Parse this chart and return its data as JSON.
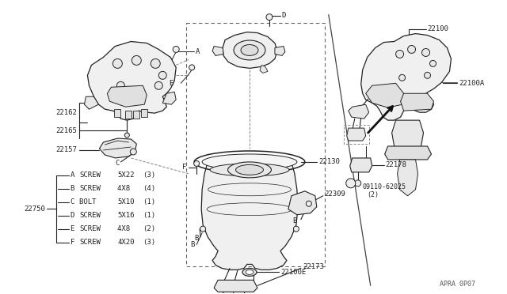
{
  "bg_color": "#ffffff",
  "line_color": "#222222",
  "text_color": "#222222",
  "diagram_code": "APRA 0P07",
  "bolt_legend": [
    [
      "A",
      "SCREW",
      "5X22",
      "(3)"
    ],
    [
      "B",
      "SCREW",
      "4X8 ",
      "(4)"
    ],
    [
      "C",
      "BOLT ",
      "5X10",
      "(1)"
    ],
    [
      "D",
      "SCREW",
      "5X16",
      "(1)"
    ],
    [
      "E",
      "SCREW",
      "4X8 ",
      "(2)"
    ],
    [
      "F",
      "SCREW",
      "4X20",
      "(3)"
    ]
  ]
}
